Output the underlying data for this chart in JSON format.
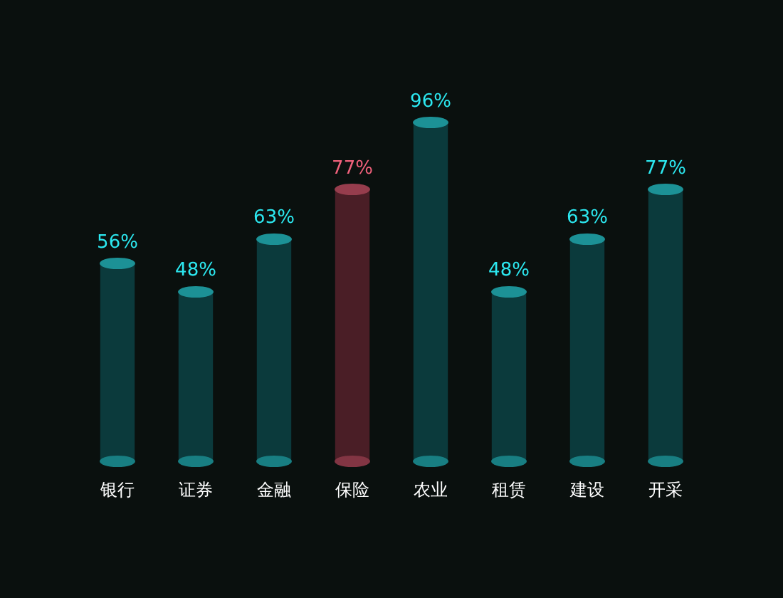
{
  "chart_data": {
    "type": "bar",
    "categories": [
      "银行",
      "证券",
      "金融",
      "保险",
      "农业",
      "租赁",
      "建设",
      "开采"
    ],
    "values": [
      56,
      48,
      63,
      77,
      96,
      48,
      63,
      77
    ],
    "colors": [
      "#0b3a3c",
      "#0b3a3c",
      "#0b3a3c",
      "#4a1e26",
      "#0b3a3c",
      "#0b3a3c",
      "#0b3a3c",
      "#0b3a3c"
    ],
    "value_labels": [
      "56%",
      "48%",
      "63%",
      "77%",
      "96%",
      "48%",
      "63%",
      "77%"
    ]
  }
}
